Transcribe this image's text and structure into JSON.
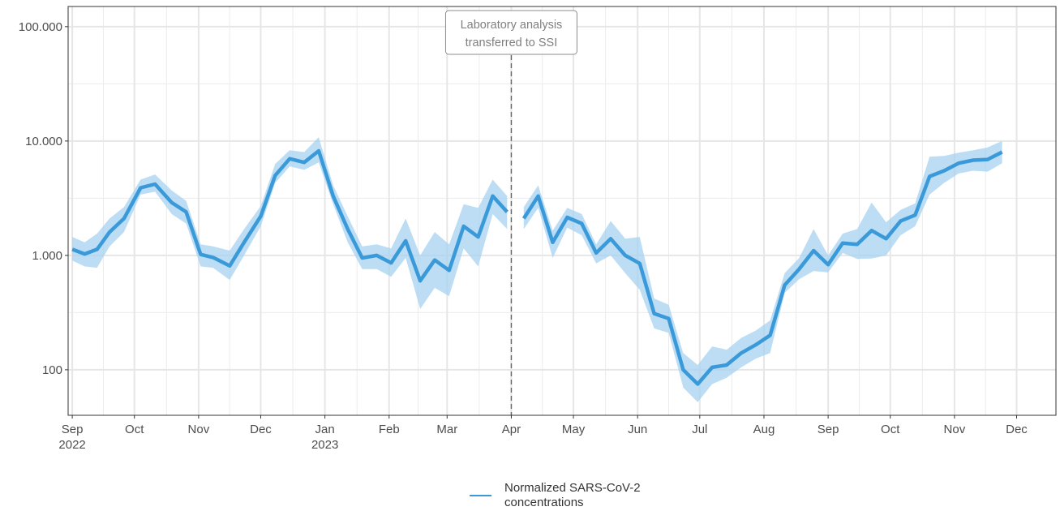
{
  "chart_data": {
    "type": "line",
    "y_scale": "log10",
    "ylim": [
      40,
      150000
    ],
    "xlim": [
      "2022-08-30",
      "2023-12-20"
    ],
    "grid": true,
    "legend_position": "bottom",
    "colors": {
      "line": "#3a9ad9",
      "ribbon": "#a6d2f0",
      "grid": "#ebebeb",
      "border": "#333333",
      "vline": "#666666"
    },
    "y_ticks": [
      {
        "value": 100,
        "label": "100"
      },
      {
        "value": 1000,
        "label": "1.000"
      },
      {
        "value": 10000,
        "label": "10.000"
      },
      {
        "value": 100000,
        "label": "100.000"
      }
    ],
    "x_ticks": [
      {
        "date": "2022-09-01",
        "label": "Sep",
        "label2": "2022"
      },
      {
        "date": "2022-10-01",
        "label": "Oct",
        "label2": ""
      },
      {
        "date": "2022-11-01",
        "label": "Nov",
        "label2": ""
      },
      {
        "date": "2022-12-01",
        "label": "Dec",
        "label2": ""
      },
      {
        "date": "2023-01-01",
        "label": "Jan",
        "label2": "2023"
      },
      {
        "date": "2023-02-01",
        "label": "Feb",
        "label2": ""
      },
      {
        "date": "2023-03-01",
        "label": "Mar",
        "label2": ""
      },
      {
        "date": "2023-04-01",
        "label": "Apr",
        "label2": ""
      },
      {
        "date": "2023-05-01",
        "label": "May",
        "label2": ""
      },
      {
        "date": "2023-06-01",
        "label": "Jun",
        "label2": ""
      },
      {
        "date": "2023-07-01",
        "label": "Jul",
        "label2": ""
      },
      {
        "date": "2023-08-01",
        "label": "Aug",
        "label2": ""
      },
      {
        "date": "2023-09-01",
        "label": "Sep",
        "label2": ""
      },
      {
        "date": "2023-10-01",
        "label": "Oct",
        "label2": ""
      },
      {
        "date": "2023-11-01",
        "label": "Nov",
        "label2": ""
      },
      {
        "date": "2023-12-01",
        "label": "Dec",
        "label2": ""
      }
    ],
    "annotation": {
      "date": "2023-04-01",
      "lines": [
        "Laboratory analysis",
        "transferred to SSI"
      ]
    },
    "series": [
      {
        "name": "Normalized SARS-CoV-2 concentrations",
        "segments": [
          [
            {
              "x": "2022-09-01",
              "y": 1130,
              "lo": 900,
              "hi": 1450
            },
            {
              "x": "2022-09-07",
              "y": 1030,
              "lo": 800,
              "hi": 1300
            },
            {
              "x": "2022-09-13",
              "y": 1130,
              "lo": 780,
              "hi": 1550
            },
            {
              "x": "2022-09-19",
              "y": 1600,
              "lo": 1200,
              "hi": 2100
            },
            {
              "x": "2022-09-26",
              "y": 2100,
              "lo": 1600,
              "hi": 2650
            },
            {
              "x": "2022-10-04",
              "y": 3900,
              "lo": 3400,
              "hi": 4600
            },
            {
              "x": "2022-10-11",
              "y": 4200,
              "lo": 3600,
              "hi": 5100
            },
            {
              "x": "2022-10-19",
              "y": 2900,
              "lo": 2300,
              "hi": 3700
            },
            {
              "x": "2022-10-26",
              "y": 2400,
              "lo": 1900,
              "hi": 3000
            },
            {
              "x": "2022-11-02",
              "y": 1020,
              "lo": 800,
              "hi": 1250
            },
            {
              "x": "2022-11-08",
              "y": 960,
              "lo": 780,
              "hi": 1200
            },
            {
              "x": "2022-11-16",
              "y": 810,
              "lo": 610,
              "hi": 1100
            },
            {
              "x": "2022-11-23",
              "y": 1300,
              "lo": 1000,
              "hi": 1700
            },
            {
              "x": "2022-12-01",
              "y": 2200,
              "lo": 1800,
              "hi": 2700
            },
            {
              "x": "2022-12-08",
              "y": 5000,
              "lo": 4300,
              "hi": 6300
            },
            {
              "x": "2022-12-15",
              "y": 7000,
              "lo": 6000,
              "hi": 8300
            },
            {
              "x": "2022-12-22",
              "y": 6500,
              "lo": 5600,
              "hi": 8000
            },
            {
              "x": "2022-12-29",
              "y": 8200,
              "lo": 6500,
              "hi": 10800
            },
            {
              "x": "2023-01-05",
              "y": 3300,
              "lo": 2800,
              "hi": 4100
            },
            {
              "x": "2023-01-12",
              "y": 1700,
              "lo": 1300,
              "hi": 2200
            },
            {
              "x": "2023-01-19",
              "y": 950,
              "lo": 760,
              "hi": 1200
            },
            {
              "x": "2023-01-26",
              "y": 1000,
              "lo": 760,
              "hi": 1250
            },
            {
              "x": "2023-02-02",
              "y": 860,
              "lo": 650,
              "hi": 1150
            },
            {
              "x": "2023-02-09",
              "y": 1340,
              "lo": 950,
              "hi": 2100
            },
            {
              "x": "2023-02-16",
              "y": 600,
              "lo": 340,
              "hi": 1000
            },
            {
              "x": "2023-02-23",
              "y": 910,
              "lo": 520,
              "hi": 1600
            },
            {
              "x": "2023-03-02",
              "y": 740,
              "lo": 440,
              "hi": 1250
            },
            {
              "x": "2023-03-09",
              "y": 1800,
              "lo": 1150,
              "hi": 2800
            },
            {
              "x": "2023-03-16",
              "y": 1450,
              "lo": 800,
              "hi": 2600
            },
            {
              "x": "2023-03-23",
              "y": 3300,
              "lo": 2300,
              "hi": 4600
            },
            {
              "x": "2023-03-30",
              "y": 2400,
              "lo": 1700,
              "hi": 3300
            }
          ],
          [
            {
              "x": "2023-04-07",
              "y": 2100,
              "lo": 1700,
              "hi": 2650
            },
            {
              "x": "2023-04-14",
              "y": 3300,
              "lo": 2600,
              "hi": 4100
            },
            {
              "x": "2023-04-21",
              "y": 1300,
              "lo": 950,
              "hi": 1650
            },
            {
              "x": "2023-04-28",
              "y": 2150,
              "lo": 1750,
              "hi": 2600
            },
            {
              "x": "2023-05-05",
              "y": 1900,
              "lo": 1500,
              "hi": 2300
            },
            {
              "x": "2023-05-12",
              "y": 1050,
              "lo": 850,
              "hi": 1250
            },
            {
              "x": "2023-05-19",
              "y": 1400,
              "lo": 1000,
              "hi": 2000
            },
            {
              "x": "2023-05-26",
              "y": 1000,
              "lo": 700,
              "hi": 1400
            },
            {
              "x": "2023-06-02",
              "y": 850,
              "lo": 500,
              "hi": 1450
            },
            {
              "x": "2023-06-09",
              "y": 310,
              "lo": 230,
              "hi": 420
            },
            {
              "x": "2023-06-16",
              "y": 280,
              "lo": 210,
              "hi": 370
            },
            {
              "x": "2023-06-23",
              "y": 100,
              "lo": 70,
              "hi": 140
            },
            {
              "x": "2023-06-30",
              "y": 75,
              "lo": 52,
              "hi": 110
            },
            {
              "x": "2023-07-07",
              "y": 105,
              "lo": 75,
              "hi": 160
            },
            {
              "x": "2023-07-14",
              "y": 110,
              "lo": 85,
              "hi": 150
            },
            {
              "x": "2023-07-21",
              "y": 140,
              "lo": 105,
              "hi": 190
            },
            {
              "x": "2023-07-28",
              "y": 165,
              "lo": 125,
              "hi": 220
            },
            {
              "x": "2023-08-04",
              "y": 200,
              "lo": 140,
              "hi": 270
            },
            {
              "x": "2023-08-11",
              "y": 550,
              "lo": 470,
              "hi": 700
            },
            {
              "x": "2023-08-18",
              "y": 760,
              "lo": 620,
              "hi": 950
            },
            {
              "x": "2023-08-25",
              "y": 1100,
              "lo": 730,
              "hi": 1700
            },
            {
              "x": "2023-09-01",
              "y": 830,
              "lo": 710,
              "hi": 1000
            },
            {
              "x": "2023-09-08",
              "y": 1280,
              "lo": 1050,
              "hi": 1550
            },
            {
              "x": "2023-09-15",
              "y": 1250,
              "lo": 930,
              "hi": 1700
            },
            {
              "x": "2023-09-22",
              "y": 1650,
              "lo": 940,
              "hi": 2900
            },
            {
              "x": "2023-09-29",
              "y": 1400,
              "lo": 1000,
              "hi": 1950
            },
            {
              "x": "2023-10-06",
              "y": 2000,
              "lo": 1500,
              "hi": 2500
            },
            {
              "x": "2023-10-13",
              "y": 2250,
              "lo": 1800,
              "hi": 2850
            },
            {
              "x": "2023-10-20",
              "y": 4900,
              "lo": 3400,
              "hi": 7300
            },
            {
              "x": "2023-10-27",
              "y": 5500,
              "lo": 4300,
              "hi": 7400
            },
            {
              "x": "2023-11-03",
              "y": 6400,
              "lo": 5200,
              "hi": 7900
            },
            {
              "x": "2023-11-10",
              "y": 6800,
              "lo": 5500,
              "hi": 8300
            },
            {
              "x": "2023-11-17",
              "y": 6900,
              "lo": 5400,
              "hi": 8800
            },
            {
              "x": "2023-11-24",
              "y": 8000,
              "lo": 6400,
              "hi": 10000
            }
          ]
        ]
      }
    ]
  }
}
